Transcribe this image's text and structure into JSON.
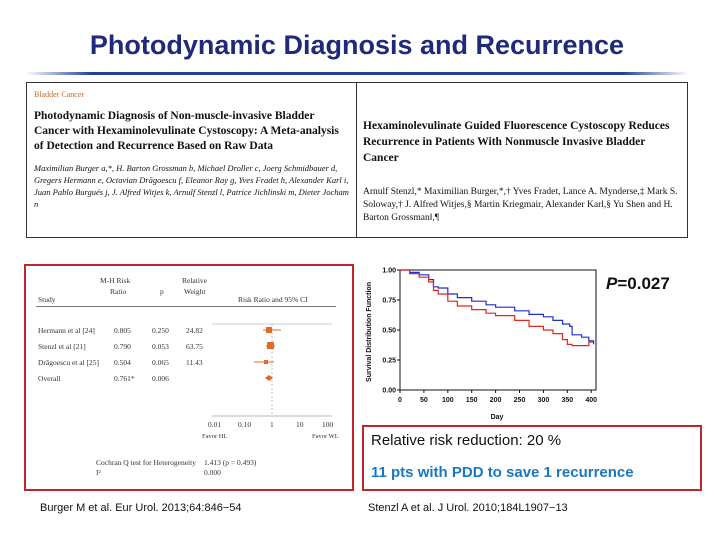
{
  "slide": {
    "title": "Photodynamic Diagnosis and Recurrence"
  },
  "papers": {
    "left": {
      "journal": "Bladder Cancer",
      "title": "Photodynamic Diagnosis of Non-muscle-invasive Bladder Cancer with Hexaminolevulinate Cystoscopy: A Meta-analysis of Detection and Recurrence Based on Raw Data",
      "authors": "Maximilian Burger a,*, H. Barton Grossman b, Michael Droller c, Joerg Schmidbauer d, Gregers Hermann e, Octavian Drăgoescu f, Eleanor Ray g, Yves Fradet h, Alexander Karl i, Juan Pablo Burgués j, J. Alfred Witjes k, Arnulf Stenzl l, Patrice Jichlinski m, Dieter Jocham n"
    },
    "right": {
      "title": "Hexaminolevulinate Guided Fluorescence Cystoscopy Reduces Recurrence in Patients With Nonmuscle Invasive Bladder Cancer",
      "authors": "Arnulf Stenzl,* Maximilian Burger,*,† Yves Fradet, Lance A. Mynderse,‡ Mark S. Soloway,† J. Alfred Witjes,§ Martin Kriegmair, Alexander Karl,§ Yu Shen and H. Barton Grossman‖,¶"
    }
  },
  "forest_plot": {
    "headers": {
      "study": "Study",
      "mh_line1": "M-H Risk",
      "mh_line2": "Ratio",
      "p": "p",
      "weight_line1": "Relative",
      "weight_line2": "Weight",
      "ci": "Risk Ratio and 95% CI"
    },
    "rows": [
      {
        "study": "Hermann et al [24]",
        "ratio": "0.805",
        "p": "0.250",
        "weight": "24.82"
      },
      {
        "study": "Stenzl et al [21]",
        "ratio": "0.790",
        "p": "0.053",
        "weight": "63.75"
      },
      {
        "study": "Drăgoescu et al [25]",
        "ratio": "0.504",
        "p": "0.065",
        "weight": "11.43"
      },
      {
        "study": "Overall",
        "ratio": "0.761*",
        "p": "0.006",
        "weight": ""
      }
    ],
    "axis_ticks": [
      "0.01",
      "0.10",
      "1",
      "10",
      "100"
    ],
    "favor_left": "Favor HL",
    "favor_right": "Favor WL",
    "heterogeneity_line1": "Cochran Q test for Heterogeneity",
    "heterogeneity_line2": "I²",
    "heterogeneity_value1": "1.413 (p = 0.493)",
    "heterogeneity_value2": "0.000"
  },
  "chart_data": {
    "type": "line",
    "xlabel": "Day",
    "ylabel": "Survival Distribution Function",
    "xlim": [
      0,
      410
    ],
    "ylim": [
      0,
      1.0
    ],
    "x_ticks": [
      0,
      50,
      100,
      150,
      200,
      250,
      300,
      350,
      400
    ],
    "y_ticks": [
      0.0,
      0.25,
      0.5,
      0.75,
      1.0
    ],
    "y_tick_labels": [
      "0.00",
      "0.25",
      "0.50",
      "0.75",
      "1.00"
    ],
    "colors": {
      "blue": "#1f2fd0",
      "red": "#e0261e"
    },
    "series": [
      {
        "color": "blue",
        "x": [
          0,
          20,
          40,
          60,
          70,
          80,
          100,
          120,
          150,
          180,
          200,
          240,
          270,
          300,
          320,
          340,
          355,
          360,
          380,
          395,
          405
        ],
        "y": [
          1.0,
          0.98,
          0.96,
          0.92,
          0.86,
          0.85,
          0.8,
          0.77,
          0.74,
          0.71,
          0.69,
          0.66,
          0.63,
          0.61,
          0.58,
          0.55,
          0.53,
          0.46,
          0.44,
          0.41,
          0.38
        ]
      },
      {
        "color": "red",
        "x": [
          0,
          20,
          40,
          60,
          70,
          80,
          100,
          120,
          150,
          180,
          200,
          240,
          270,
          300,
          320,
          340,
          350,
          360,
          380,
          395,
          405
        ],
        "y": [
          1.0,
          0.97,
          0.94,
          0.9,
          0.83,
          0.8,
          0.74,
          0.7,
          0.67,
          0.64,
          0.62,
          0.58,
          0.53,
          0.5,
          0.47,
          0.42,
          0.38,
          0.37,
          0.37,
          0.4,
          0.4
        ]
      }
    ]
  },
  "p_value": {
    "label": "P",
    "value": "=0.027"
  },
  "summary": {
    "line1": "Relative risk reduction: 20 %",
    "line2": "11 pts with PDD to save 1 recurrence",
    "line2_color": "#1a78c2"
  },
  "citations": {
    "left": "Burger M et al. Eur Urol. 2013;64:846−54",
    "right": "Stenzl A et al. J Urol. 2010;184L1907−13"
  }
}
